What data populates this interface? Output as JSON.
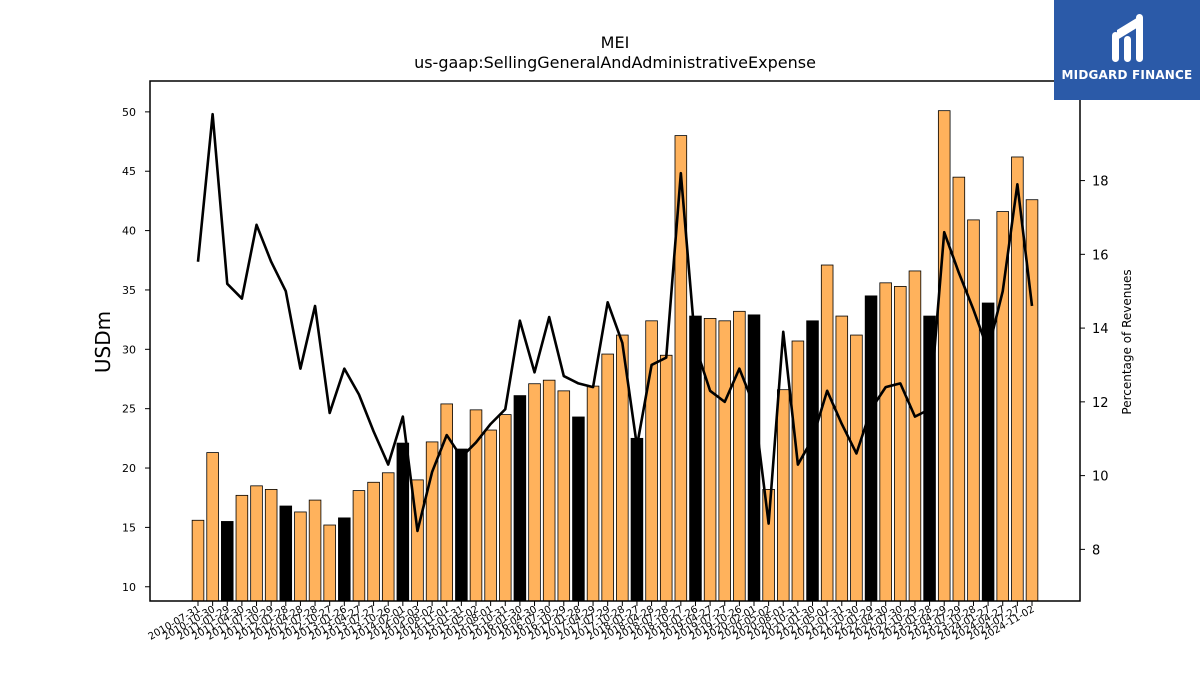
{
  "brand": {
    "name": "MIDGARD FINANCE",
    "bg": "#2b5aa8"
  },
  "chart_data": {
    "type": "bar",
    "title": "MEI",
    "subtitle": "us-gaap:SellingGeneralAndAdministrativeExpense",
    "ylabel": "USDm",
    "y2label": "Percentage of Revenues",
    "ylim": [
      8.8,
      52.6
    ],
    "y2lim": [
      6.6,
      20.7
    ],
    "yticks": [
      10,
      15,
      20,
      25,
      30,
      35,
      40,
      45,
      50
    ],
    "y2ticks": [
      8,
      10,
      12,
      14,
      16,
      18
    ],
    "colors": {
      "bar": "#ffb25c",
      "bar_q4": "#000000",
      "line": "#000000"
    },
    "categories": [
      "2010-07-31",
      "2010-10-30",
      "2011-01-29",
      "2011-04-30",
      "2011-07-30",
      "2011-10-29",
      "2012-01-28",
      "2012-04-28",
      "2012-07-28",
      "2012-10-27",
      "2013-01-26",
      "2013-04-27",
      "2013-07-27",
      "2013-10-26",
      "2014-02-01",
      "2014-05-03",
      "2014-08-02",
      "2014-11-01",
      "2015-01-31",
      "2015-05-02",
      "2015-08-01",
      "2015-10-31",
      "2016-01-30",
      "2016-04-30",
      "2016-07-30",
      "2016-10-29",
      "2017-01-28",
      "2017-04-29",
      "2017-07-29",
      "2017-10-28",
      "2018-01-27",
      "2018-04-28",
      "2018-07-28",
      "2018-10-27",
      "2019-01-26",
      "2019-04-27",
      "2019-07-27",
      "2019-10-26",
      "2020-02-01",
      "2020-05-02",
      "2020-08-01",
      "2020-10-31",
      "2021-01-30",
      "2021-05-01",
      "2021-07-31",
      "2021-10-30",
      "2022-01-29",
      "2022-04-30",
      "2022-07-30",
      "2022-10-29",
      "2023-01-28",
      "2023-04-29",
      "2023-07-29",
      "2023-10-28",
      "2024-01-27",
      "2024-04-27",
      "2024-07-27",
      "2024-11-02"
    ],
    "series": [
      {
        "type": "bar",
        "values": [
          15.6,
          21.3,
          15.5,
          17.7,
          18.5,
          18.2,
          16.8,
          16.3,
          17.3,
          15.2,
          15.8,
          18.1,
          18.8,
          19.6,
          22.1,
          19.0,
          22.2,
          25.4,
          21.6,
          24.9,
          23.2,
          24.5,
          26.1,
          27.1,
          27.4,
          26.5,
          24.3,
          26.9,
          29.6,
          31.2,
          22.5,
          32.4,
          29.5,
          48.0,
          32.8,
          32.6,
          32.4,
          33.2,
          32.9,
          18.2,
          26.6,
          30.7,
          32.4,
          37.1,
          32.8,
          31.2,
          34.5,
          35.6,
          35.3,
          36.6,
          32.8,
          50.1,
          44.5,
          40.9,
          33.9,
          41.6,
          46.2,
          42.6
        ],
        "q4": [
          false,
          false,
          true,
          false,
          false,
          false,
          true,
          false,
          false,
          false,
          true,
          false,
          false,
          false,
          true,
          false,
          false,
          false,
          true,
          false,
          false,
          false,
          true,
          false,
          false,
          false,
          true,
          false,
          false,
          false,
          true,
          false,
          false,
          false,
          true,
          false,
          false,
          false,
          true,
          false,
          false,
          false,
          true,
          false,
          false,
          false,
          true,
          false,
          false,
          false,
          true,
          false,
          false,
          false,
          true,
          false,
          false,
          false
        ]
      },
      {
        "type": "line",
        "axis": "right",
        "values": [
          15.8,
          19.8,
          15.2,
          14.8,
          16.8,
          15.8,
          15.0,
          12.9,
          14.6,
          11.7,
          12.9,
          12.2,
          11.2,
          10.3,
          11.6,
          8.5,
          10.1,
          11.1,
          10.5,
          10.9,
          11.4,
          11.8,
          14.2,
          12.8,
          14.3,
          12.7,
          12.5,
          12.4,
          14.7,
          13.6,
          10.8,
          13.0,
          13.2,
          18.2,
          13.5,
          12.3,
          12.0,
          12.9,
          11.9,
          8.7,
          13.9,
          10.3,
          11.0,
          12.3,
          11.4,
          10.6,
          11.8,
          12.4,
          12.5,
          11.6,
          11.8,
          16.6,
          15.5,
          14.5,
          13.4,
          15.0,
          17.9,
          14.6
        ]
      }
    ]
  }
}
